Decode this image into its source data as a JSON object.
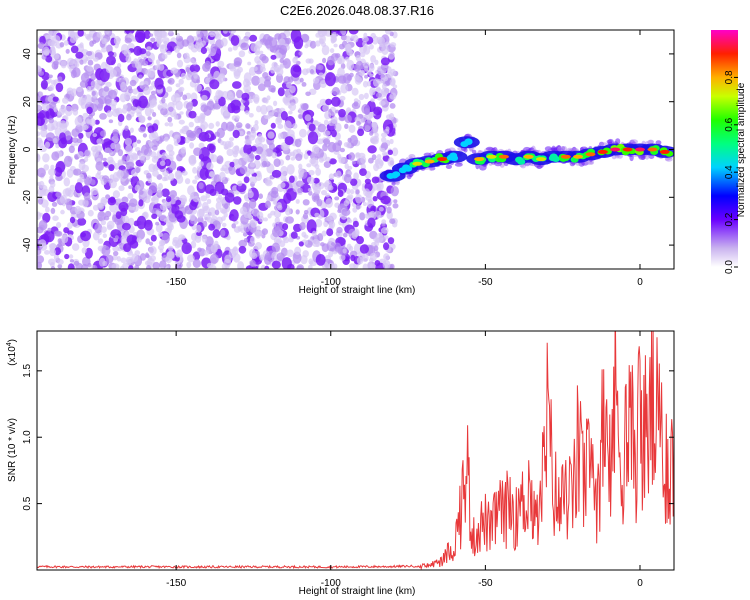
{
  "title": "C2E6.2026.048.08.37.R16",
  "chart_data": [
    {
      "type": "scatter",
      "name": "spectrogram",
      "xlabel": "Height of straight line (km)",
      "ylabel": "Frequency (Hz)",
      "xlim": [
        -195,
        11
      ],
      "ylim": [
        -50,
        50
      ],
      "xticks": [
        -150,
        -100,
        -50,
        0
      ],
      "yticks": [
        -40,
        -20,
        0,
        20,
        40
      ],
      "noise_region": {
        "x_range": [
          -195,
          -79
        ],
        "y_range": [
          -50,
          50
        ]
      },
      "signal_track": [
        {
          "x": -80,
          "y": -11,
          "a": 0.2
        },
        {
          "x": -76,
          "y": -8,
          "a": 0.35
        },
        {
          "x": -72,
          "y": -6,
          "a": 0.75
        },
        {
          "x": -68,
          "y": -5,
          "a": 0.8
        },
        {
          "x": -64,
          "y": -4,
          "a": 0.9
        },
        {
          "x": -60,
          "y": -3,
          "a": 0.6
        },
        {
          "x": -56,
          "y": 3,
          "a": 0.45
        },
        {
          "x": -52,
          "y": -4,
          "a": 0.8
        },
        {
          "x": -48,
          "y": -3,
          "a": 0.75
        },
        {
          "x": -44,
          "y": -3,
          "a": 0.85
        },
        {
          "x": -40,
          "y": -4,
          "a": 0.7
        },
        {
          "x": -36,
          "y": -3,
          "a": 0.8
        },
        {
          "x": -32,
          "y": -4,
          "a": 0.75
        },
        {
          "x": -28,
          "y": -3,
          "a": 0.7
        },
        {
          "x": -24,
          "y": -3,
          "a": 0.85
        },
        {
          "x": -20,
          "y": -3,
          "a": 0.8
        },
        {
          "x": -16,
          "y": -2,
          "a": 0.85
        },
        {
          "x": -12,
          "y": -1,
          "a": 0.9
        },
        {
          "x": -8,
          "y": 0,
          "a": 0.95
        },
        {
          "x": -4,
          "y": 0,
          "a": 0.9
        },
        {
          "x": 0,
          "y": 0,
          "a": 0.95
        },
        {
          "x": 4,
          "y": 0,
          "a": 0.85
        },
        {
          "x": 8,
          "y": -1,
          "a": 0.9
        }
      ],
      "colorbar": {
        "label": "Normalized spectral amplitude",
        "ticks": [
          "0.0",
          "0.2",
          "0.4",
          "0.6",
          "0.8"
        ],
        "range": [
          0,
          1
        ]
      }
    },
    {
      "type": "line",
      "name": "snr",
      "xlabel": "Height of straight line (km)",
      "ylabel": "SNR (10 * v/v)",
      "exponent_label": "(x10",
      "exponent_power": "4",
      "exponent_close": ")",
      "xlim": [
        -195,
        11
      ],
      "ylim": [
        0,
        18000
      ],
      "xticks": [
        -150,
        -100,
        -50,
        0
      ],
      "yticks": [
        0.5,
        1.0,
        1.5
      ],
      "ytick_labels": [
        "0.5",
        "1.0",
        "1.5"
      ],
      "series": [
        {
          "name": "SNR",
          "color": "#e8383a",
          "points": [
            [
              -195,
              250
            ],
            [
              -180,
              230
            ],
            [
              -160,
              240
            ],
            [
              -140,
              230
            ],
            [
              -120,
              240
            ],
            [
              -100,
              230
            ],
            [
              -80,
              260
            ],
            [
              -72,
              300
            ],
            [
              -68,
              500
            ],
            [
              -64,
              900
            ],
            [
              -62,
              1800
            ],
            [
              -60,
              2500
            ],
            [
              -58,
              6000
            ],
            [
              -56,
              10800
            ],
            [
              -54,
              3200
            ],
            [
              -52,
              4500
            ],
            [
              -50,
              5000
            ],
            [
              -48,
              3800
            ],
            [
              -46,
              6500
            ],
            [
              -44,
              5500
            ],
            [
              -42,
              7200
            ],
            [
              -40,
              5300
            ],
            [
              -38,
              6700
            ],
            [
              -36,
              9200
            ],
            [
              -34,
              4500
            ],
            [
              -32,
              7000
            ],
            [
              -30,
              15200
            ],
            [
              -28,
              8800
            ],
            [
              -26,
              6200
            ],
            [
              -24,
              8200
            ],
            [
              -22,
              6800
            ],
            [
              -20,
              12500
            ],
            [
              -18,
              9200
            ],
            [
              -16,
              10500
            ],
            [
              -14,
              8000
            ],
            [
              -12,
              13500
            ],
            [
              -10,
              9800
            ],
            [
              -8,
              17800
            ],
            [
              -6,
              12000
            ],
            [
              -4,
              14200
            ],
            [
              -2,
              12600
            ],
            [
              0,
              15200
            ],
            [
              2,
              13800
            ],
            [
              4,
              16500
            ],
            [
              6,
              14000
            ],
            [
              8,
              12000
            ],
            [
              10,
              11000
            ]
          ]
        }
      ]
    }
  ]
}
